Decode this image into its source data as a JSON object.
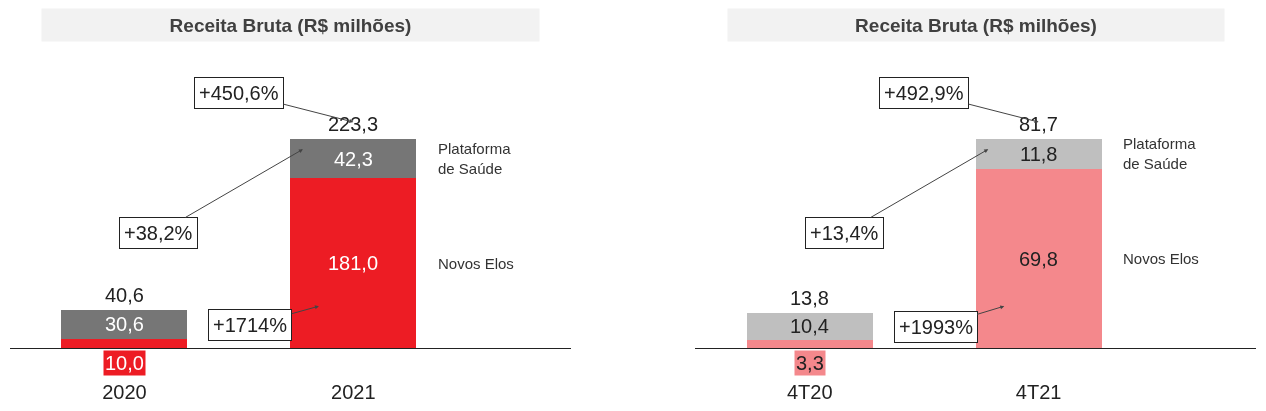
{
  "chart_data": [
    {
      "type": "bar",
      "title": "Receita Bruta (R$ milhões)",
      "stacked": true,
      "categories": [
        "2020",
        "2021"
      ],
      "series": [
        {
          "name": "Novos Elos",
          "color": "#ed1c24",
          "values": [
            10.0,
            181.0
          ],
          "value_labels": [
            "10,0",
            "181,0"
          ]
        },
        {
          "name": "Plataforma de Saúde",
          "color": "#767676",
          "values": [
            30.6,
            42.3
          ],
          "value_labels": [
            "30,6",
            "42,3"
          ]
        }
      ],
      "totals": [
        "40,6",
        "223,3"
      ],
      "annotations": [
        "+450,6%",
        "+38,2%",
        "+1714%"
      ]
    },
    {
      "type": "bar",
      "title": "Receita Bruta (R$ milhões)",
      "stacked": true,
      "categories": [
        "4T20",
        "4T21"
      ],
      "series": [
        {
          "name": "Novos Elos",
          "color": "#f4888c",
          "values": [
            3.3,
            69.8
          ],
          "value_labels": [
            "3,3",
            "69,8"
          ]
        },
        {
          "name": "Plataforma de Saúde",
          "color": "#bfbfbf",
          "values": [
            10.4,
            11.8
          ],
          "value_labels": [
            "10,4",
            "11,8"
          ]
        }
      ],
      "totals": [
        "13,8",
        "81,7"
      ],
      "annotations": [
        "+492,9%",
        "+13,4%",
        "+1993%"
      ]
    }
  ]
}
